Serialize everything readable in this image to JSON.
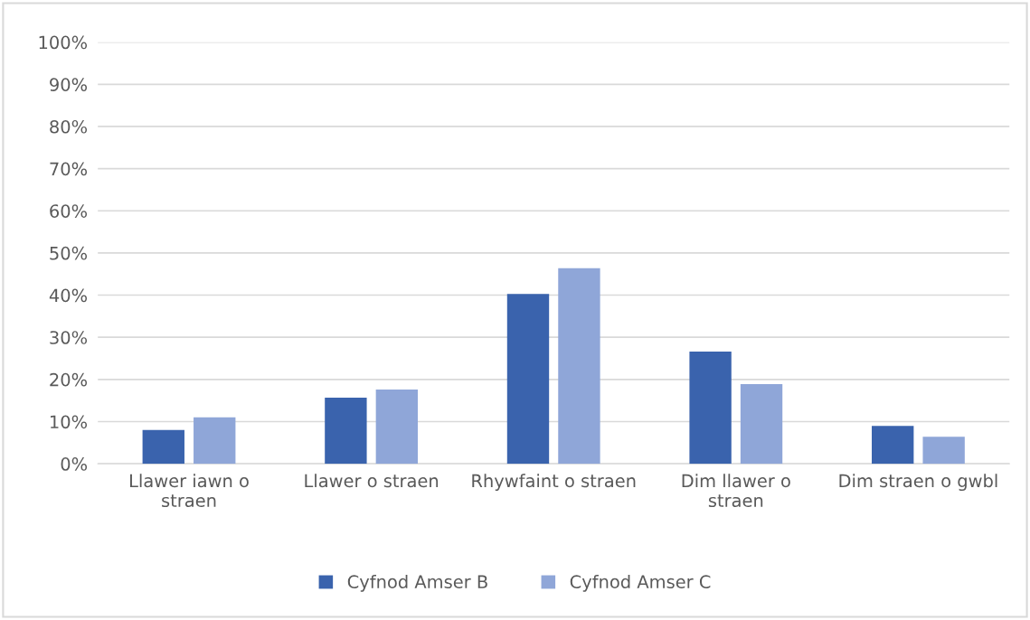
{
  "chart_data": {
    "type": "bar",
    "categories": [
      "Llawer iawn o straen",
      "Llawer o straen",
      "Rhywfaint o straen",
      "Dim llawer o straen",
      "Dim straen o gwbl"
    ],
    "series": [
      {
        "name": "Cyfnod Amser B",
        "color": "#3a63ad",
        "values": [
          8,
          15.7,
          40.3,
          26.6,
          9
        ]
      },
      {
        "name": "Cyfnod Amser C",
        "color": "#8fa6d8",
        "values": [
          11,
          17.6,
          46.4,
          18.9,
          6.4
        ]
      }
    ],
    "ylim": [
      0,
      100
    ],
    "yticks": [
      {
        "value": 0,
        "label": "0%"
      },
      {
        "value": 10,
        "label": "10%"
      },
      {
        "value": 20,
        "label": "20%"
      },
      {
        "value": 30,
        "label": "30%"
      },
      {
        "value": 40,
        "label": "40%"
      },
      {
        "value": 50,
        "label": "50%"
      },
      {
        "value": 60,
        "label": "60%"
      },
      {
        "value": 70,
        "label": "70%"
      },
      {
        "value": 80,
        "label": "80%"
      },
      {
        "value": 90,
        "label": "90%"
      },
      {
        "value": 100,
        "label": "100%"
      }
    ],
    "grid": "y",
    "legend": "bottom"
  }
}
